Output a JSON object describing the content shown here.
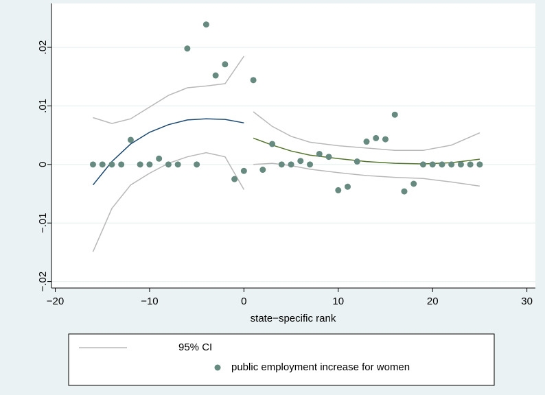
{
  "chart_data": {
    "type": "scatter",
    "xlabel": "state−specific rank",
    "xlim": [
      -20.4,
      30.9
    ],
    "ylim": [
      -0.0211,
      0.0275
    ],
    "xticks": [
      {
        "value": -20,
        "label": "−20"
      },
      {
        "value": -10,
        "label": "−10"
      },
      0,
      10,
      20,
      30
    ],
    "yticks": [
      {
        "value": -0.02,
        "label": "−.02"
      },
      {
        "value": -0.01,
        "label": "−.01"
      },
      0,
      {
        "value": 0.01,
        "label": ".01"
      },
      {
        "value": 0.02,
        "label": ".02"
      }
    ],
    "grid": true,
    "legend": "bottom",
    "series": [
      {
        "type": "line",
        "name": "95% CI",
        "color": "#b8b8b8",
        "x": [
          -16,
          -14,
          -12,
          -10,
          -8,
          -6,
          -4,
          -2,
          0
        ],
        "values": [
          0.008,
          0.007,
          0.0078,
          0.0098,
          0.0118,
          0.0131,
          0.0134,
          0.0138,
          0.0185
        ]
      },
      {
        "type": "line",
        "color": "#b8b8b8",
        "x": [
          -16,
          -14,
          -12,
          -10,
          -8,
          -6,
          -4,
          -2,
          0
        ],
        "values": [
          -0.0149,
          -0.0075,
          -0.0035,
          -0.0015,
          0.0002,
          0.0013,
          0.002,
          0.0013,
          -0.0043
        ]
      },
      {
        "type": "line",
        "color": "#b8b8b8",
        "x": [
          1,
          3,
          5,
          7,
          10,
          13,
          16,
          19,
          22,
          25
        ],
        "values": [
          0.009,
          0.0065,
          0.0048,
          0.0038,
          0.0032,
          0.0028,
          0.0024,
          0.0024,
          0.0033,
          0.0054
        ]
      },
      {
        "type": "line",
        "color": "#b8b8b8",
        "x": [
          1,
          3,
          5,
          7,
          10,
          13,
          16,
          19,
          22,
          25
        ],
        "values": [
          0,
          0.0002,
          -0.0002,
          -0.0008,
          -0.0014,
          -0.0019,
          -0.0022,
          -0.0024,
          -0.003,
          -0.0037
        ]
      },
      {
        "type": "line",
        "color": "#1a476f",
        "x": [
          -16,
          -14,
          -12,
          -10,
          -8,
          -6,
          -4,
          -2,
          0
        ],
        "values": [
          -0.0035,
          0.0005,
          0.0035,
          0.0055,
          0.0068,
          0.0076,
          0.0078,
          0.0077,
          0.0071
        ]
      },
      {
        "type": "line",
        "color": "#55752f",
        "x": [
          1,
          3,
          5,
          7,
          10,
          13,
          16,
          19,
          22,
          25
        ],
        "values": [
          0.0045,
          0.0033,
          0.0023,
          0.0016,
          0.001,
          0.0005,
          0.0002,
          0.0001,
          0.0003,
          0.0009
        ]
      },
      {
        "type": "scatter",
        "name": "public employment increase for women",
        "color": "#668a7f",
        "x": [
          -16,
          -15,
          -14,
          -13,
          -12,
          -11,
          -10,
          -9,
          -8,
          -7,
          -6,
          -5,
          -4,
          -3,
          -2,
          -1,
          0,
          1,
          2,
          3,
          4,
          5,
          6,
          7,
          8,
          9,
          10,
          11,
          12,
          13,
          14,
          15,
          16,
          17,
          18,
          19,
          20,
          21,
          22,
          23,
          24,
          25
        ],
        "values": [
          0,
          0,
          0,
          0,
          0.0042,
          0,
          0,
          0.001,
          0,
          0,
          0.0198,
          0,
          0.0239,
          0.0152,
          0.0171,
          -0.0025,
          -0.0011,
          0.0144,
          -0.0009,
          0.0035,
          0,
          0,
          0.0006,
          0,
          0.0018,
          0.0013,
          -0.0044,
          -0.0038,
          0.0005,
          0.0039,
          0.0045,
          0.0043,
          0.0085,
          -0.0046,
          -0.0033,
          0,
          0,
          0,
          0,
          0,
          0,
          0
        ]
      }
    ]
  }
}
